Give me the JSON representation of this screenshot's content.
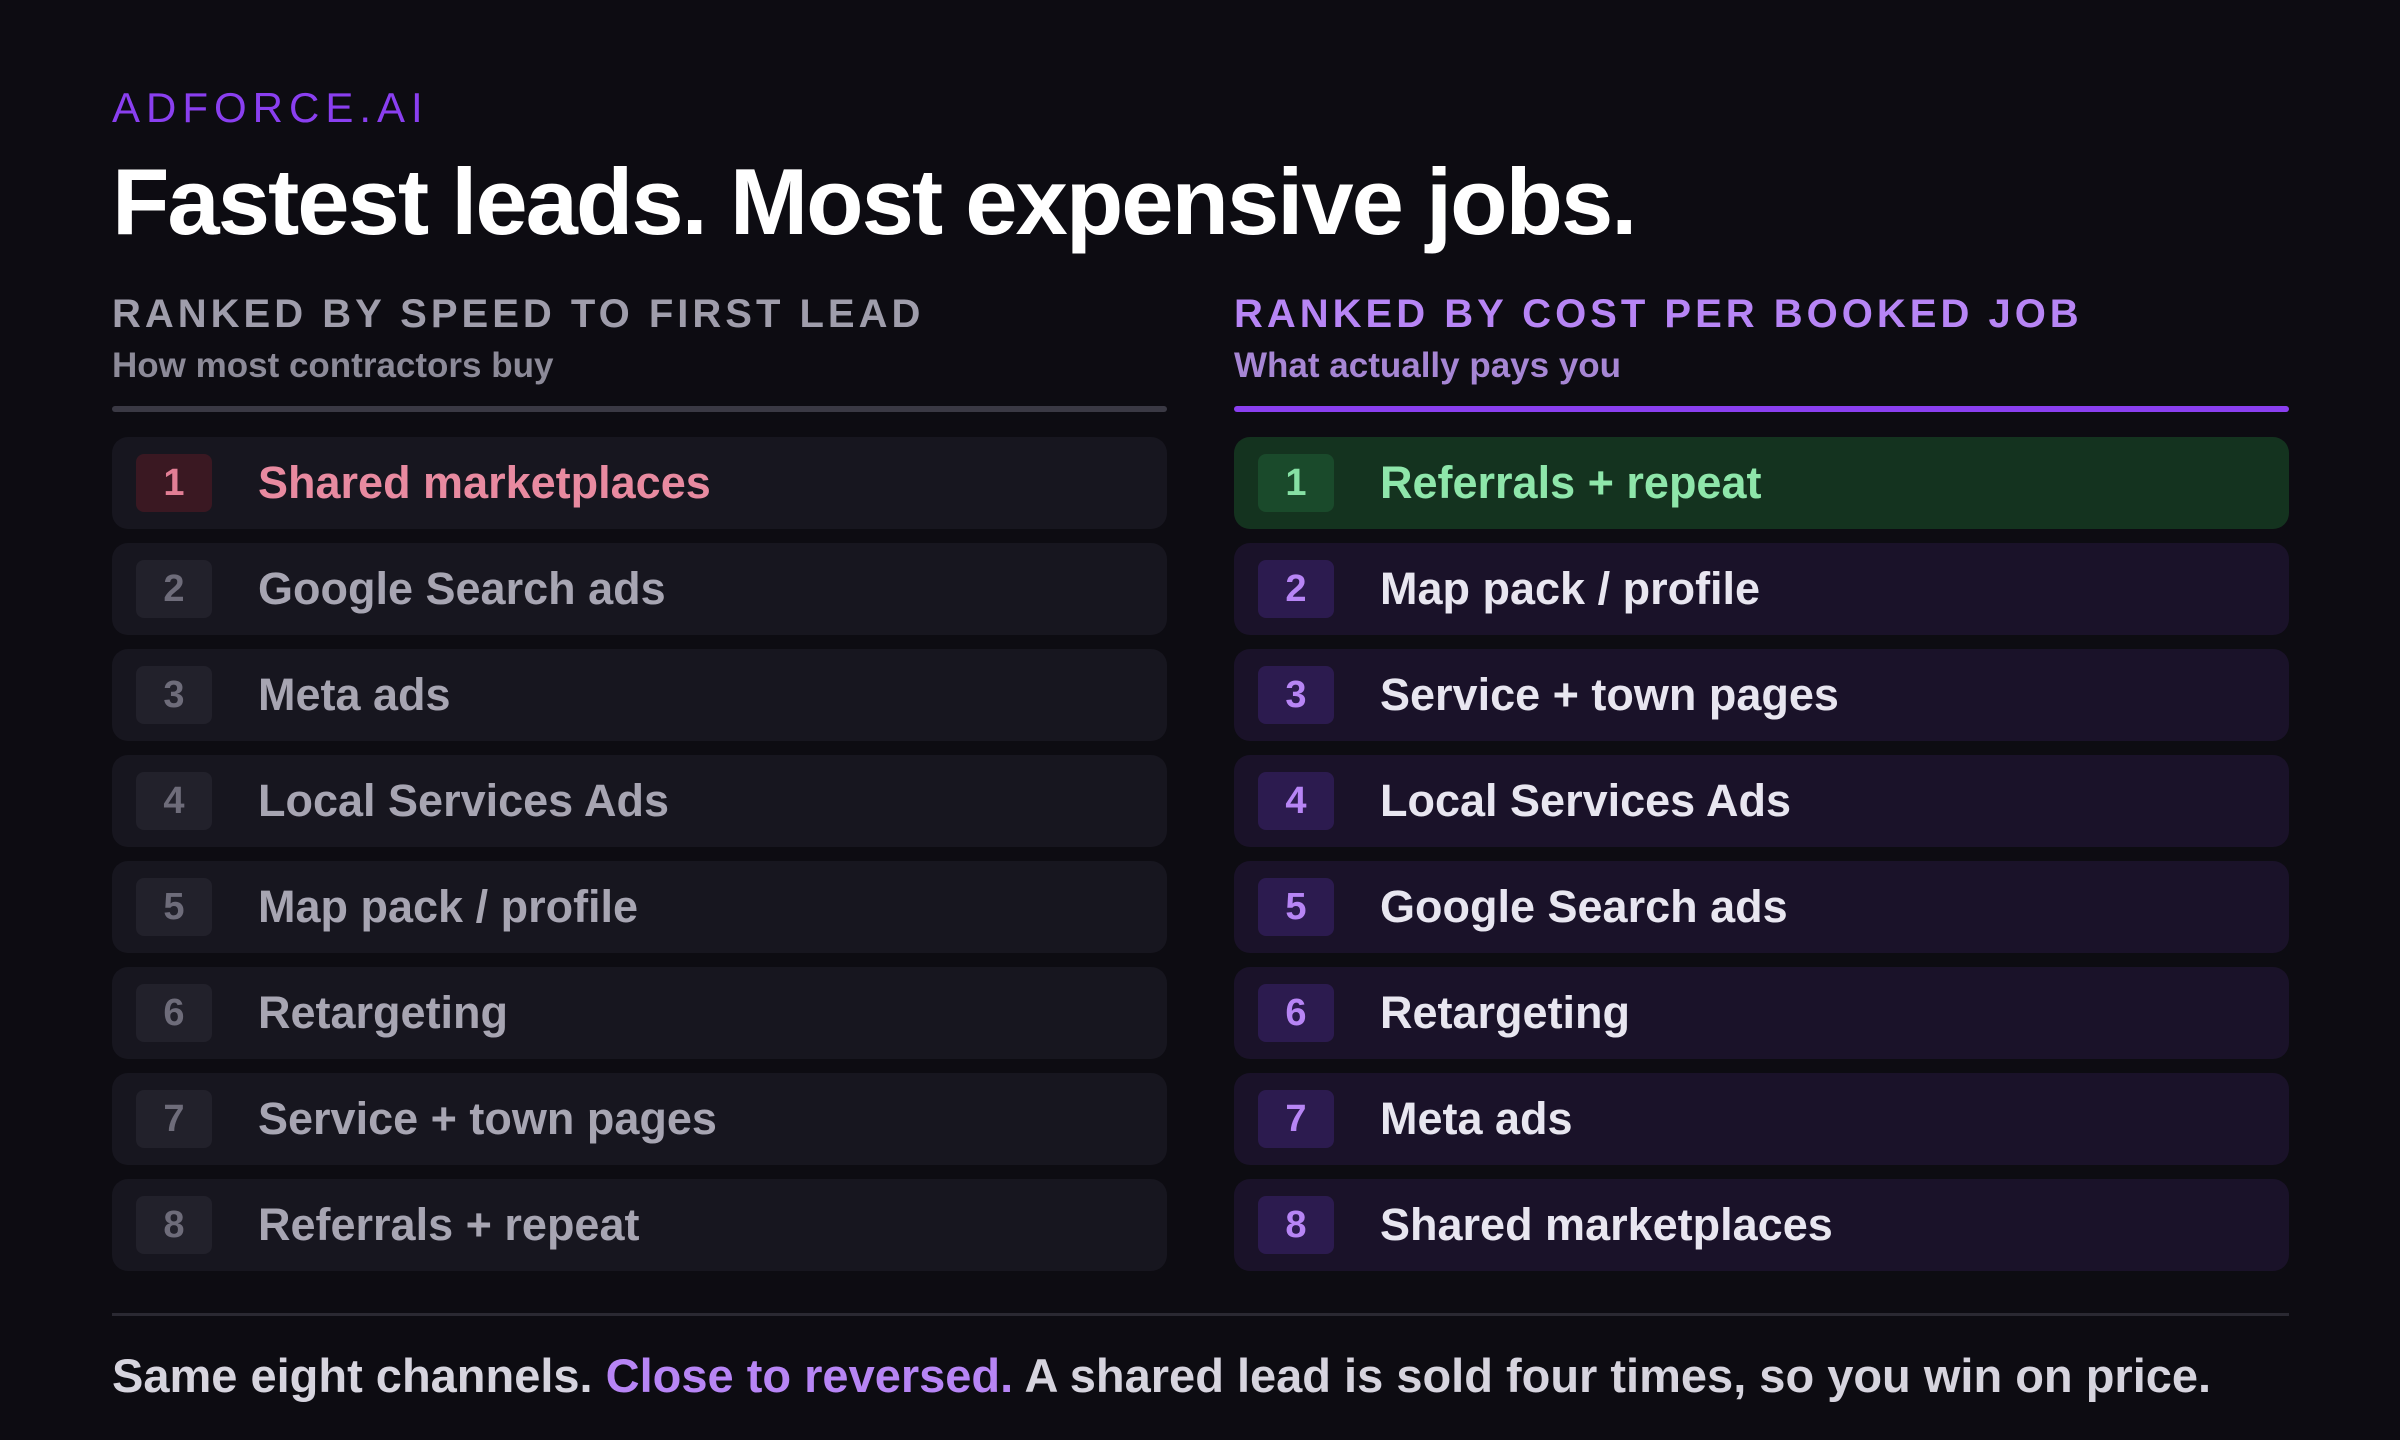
{
  "brand": "ADFORCE.AI",
  "headline": "Fastest leads. Most expensive jobs.",
  "left_column": {
    "title": "RANKED BY SPEED TO FIRST LEAD",
    "subtitle": "How most contractors buy",
    "items": [
      {
        "rank": "1",
        "label": "Shared marketplaces"
      },
      {
        "rank": "2",
        "label": "Google Search ads"
      },
      {
        "rank": "3",
        "label": "Meta ads"
      },
      {
        "rank": "4",
        "label": "Local Services Ads"
      },
      {
        "rank": "5",
        "label": "Map pack / profile"
      },
      {
        "rank": "6",
        "label": "Retargeting"
      },
      {
        "rank": "7",
        "label": "Service + town pages"
      },
      {
        "rank": "8",
        "label": "Referrals + repeat"
      }
    ]
  },
  "right_column": {
    "title": "RANKED BY COST PER BOOKED JOB",
    "subtitle": "What actually pays you",
    "items": [
      {
        "rank": "1",
        "label": "Referrals + repeat"
      },
      {
        "rank": "2",
        "label": "Map pack / profile"
      },
      {
        "rank": "3",
        "label": "Service + town pages"
      },
      {
        "rank": "4",
        "label": "Local Services Ads"
      },
      {
        "rank": "5",
        "label": "Google Search ads"
      },
      {
        "rank": "6",
        "label": "Retargeting"
      },
      {
        "rank": "7",
        "label": "Meta ads"
      },
      {
        "rank": "8",
        "label": "Shared marketplaces"
      }
    ]
  },
  "footer": {
    "lead": "Same eight channels.",
    "highlight": "Close to reversed.",
    "rest": "A shared lead is sold four times, so you win on price."
  },
  "colors": {
    "background": "#0d0c12",
    "accent_purple": "#8a3ff0",
    "highlight_green": "#8ee6aa",
    "highlight_red": "#e88aa0"
  }
}
